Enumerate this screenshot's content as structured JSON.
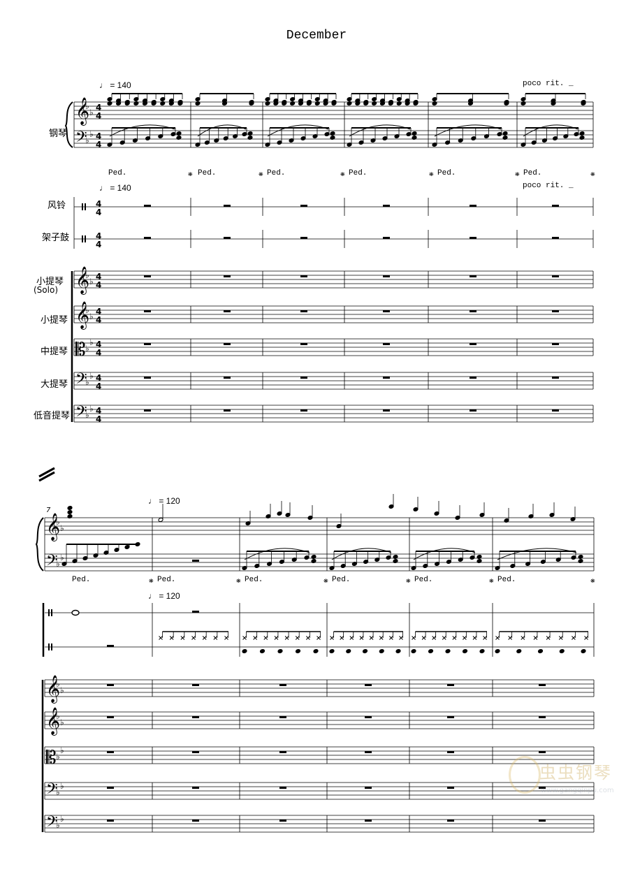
{
  "title": "December",
  "instruments": {
    "piano": "钢琴",
    "wind_chimes": "风铃",
    "drum_kit": "架子鼓",
    "violin_solo_line1": "小提琴",
    "violin_solo_line2": "(Solo)",
    "violin": "小提琴",
    "viola": "中提琴",
    "cello": "大提琴",
    "contrabass": "低音提琴"
  },
  "tempo_markings": {
    "first": "♩ = 140",
    "second": "♩ = 120"
  },
  "directions": {
    "poco_rit": "poco rit. _",
    "pedal": "Ped.",
    "pedal_release": "❋"
  },
  "measure_number": "7",
  "time_signature": "4/4",
  "watermark": {
    "name": "虫虫钢琴",
    "url": "www.gangqinpu.com"
  }
}
